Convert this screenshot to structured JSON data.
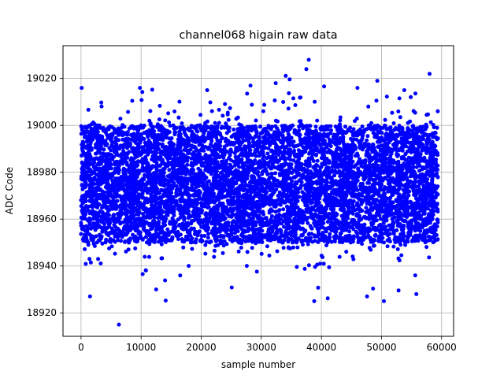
{
  "chart_data": {
    "type": "scatter",
    "title": "channel068 higain raw data",
    "xlabel": "sample number",
    "ylabel": "ADC Code",
    "xlim": [
      -3000,
      62000
    ],
    "ylim": [
      18910,
      19034
    ],
    "xticks": [
      0,
      10000,
      20000,
      30000,
      40000,
      50000,
      60000
    ],
    "yticks": [
      18920,
      18940,
      18960,
      18980,
      19000,
      19020
    ],
    "grid": true,
    "marker_color": "#0000ff",
    "series": [
      {
        "n_samples": 60000,
        "x_range": [
          0,
          59400
        ],
        "band_center": 18975,
        "dense_band": [
          18950,
          19000
        ],
        "scatter_range": [
          18925,
          19022
        ],
        "outliers": [
          {
            "x": 6300,
            "y": 18915
          },
          {
            "x": 1500,
            "y": 18927
          },
          {
            "x": 12500,
            "y": 18930
          },
          {
            "x": 37900,
            "y": 19028
          },
          {
            "x": 37500,
            "y": 19024
          },
          {
            "x": 58000,
            "y": 19022
          },
          {
            "x": 100,
            "y": 19016
          },
          {
            "x": 9800,
            "y": 19016
          },
          {
            "x": 21000,
            "y": 19015
          },
          {
            "x": 28200,
            "y": 19017
          },
          {
            "x": 32400,
            "y": 19018
          },
          {
            "x": 46000,
            "y": 19016
          },
          {
            "x": 49300,
            "y": 19019
          },
          {
            "x": 53800,
            "y": 19015
          },
          {
            "x": 38800,
            "y": 18925
          },
          {
            "x": 47600,
            "y": 18927
          },
          {
            "x": 50400,
            "y": 18925
          },
          {
            "x": 55800,
            "y": 18928
          }
        ]
      }
    ]
  }
}
